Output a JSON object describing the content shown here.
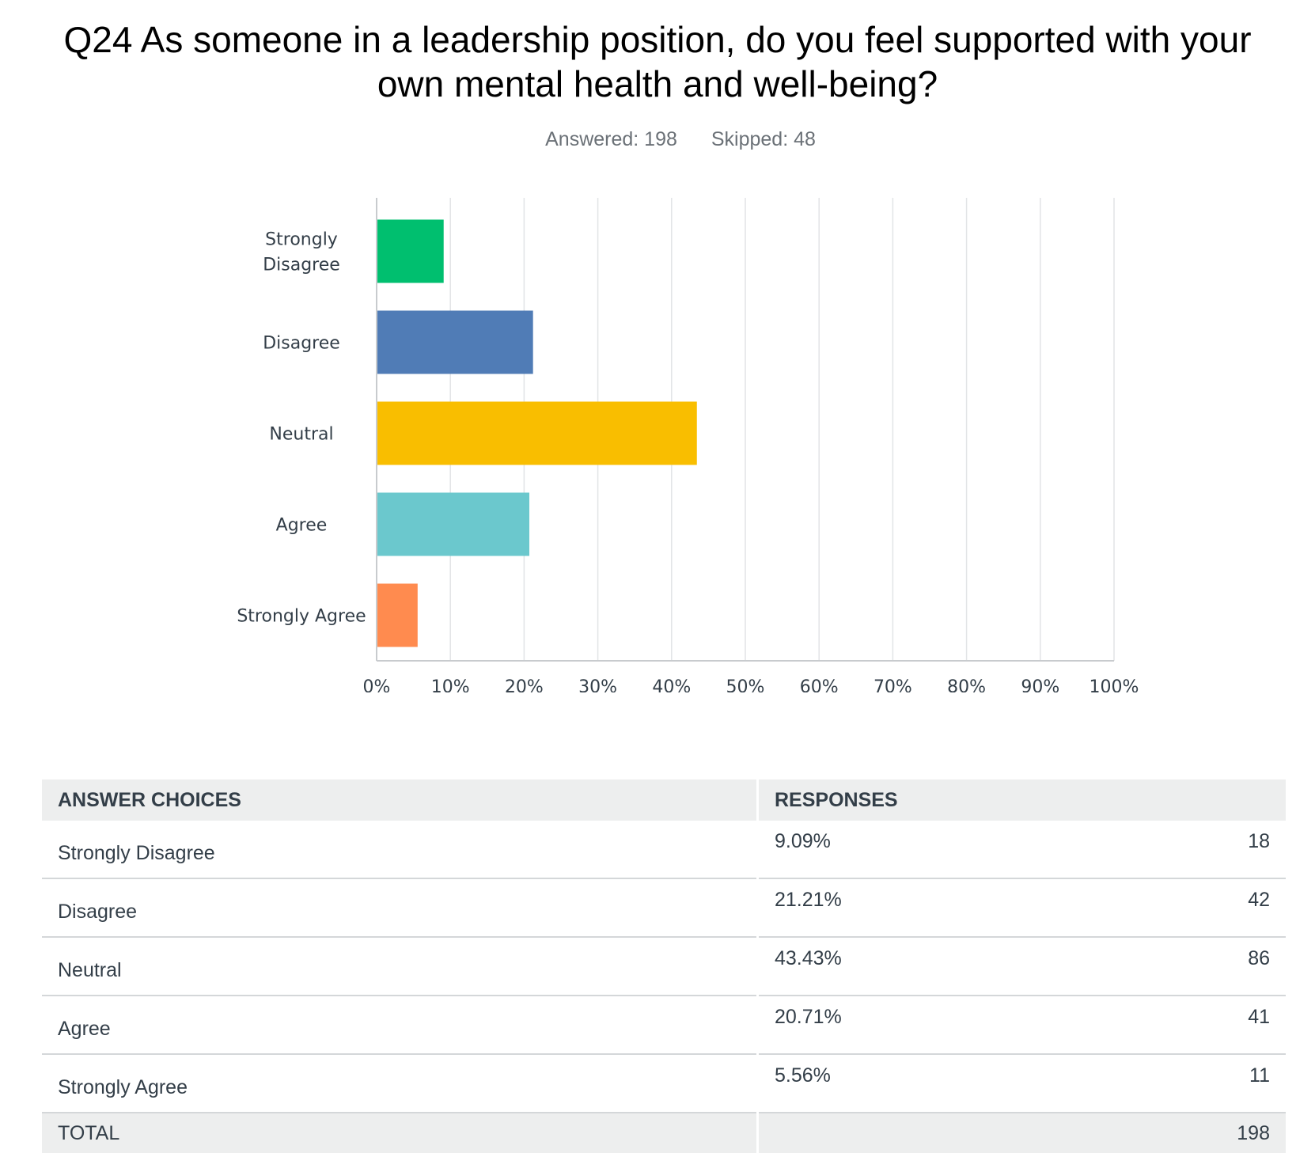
{
  "title": "Q24 As someone in a leadership position, do you feel supported with your own mental health and well-being?",
  "answered_label": "Answered: 198",
  "skipped_label": "Skipped: 48",
  "chart_data": {
    "type": "bar",
    "orientation": "horizontal",
    "categories": [
      "Strongly Disagree",
      "Disagree",
      "Neutral",
      "Agree",
      "Strongly Agree"
    ],
    "values": [
      9.09,
      21.21,
      43.43,
      20.71,
      5.56
    ],
    "colors": [
      "#00bf6f",
      "#507cb6",
      "#f9be00",
      "#6bc8cd",
      "#ff8b4f"
    ],
    "xlim": [
      0,
      100
    ],
    "xticks": [
      "0%",
      "10%",
      "20%",
      "30%",
      "40%",
      "50%",
      "60%",
      "70%",
      "80%",
      "90%",
      "100%"
    ],
    "grid": true,
    "legend": "none"
  },
  "table": {
    "headers": [
      "ANSWER CHOICES",
      "RESPONSES"
    ],
    "rows": [
      {
        "choice": "Strongly Disagree",
        "percent": "9.09%",
        "count": "18"
      },
      {
        "choice": "Disagree",
        "percent": "21.21%",
        "count": "42"
      },
      {
        "choice": "Neutral",
        "percent": "43.43%",
        "count": "86"
      },
      {
        "choice": "Agree",
        "percent": "20.71%",
        "count": "41"
      },
      {
        "choice": "Strongly Agree",
        "percent": "5.56%",
        "count": "11"
      }
    ],
    "total_label": "TOTAL",
    "total_count": "198"
  }
}
